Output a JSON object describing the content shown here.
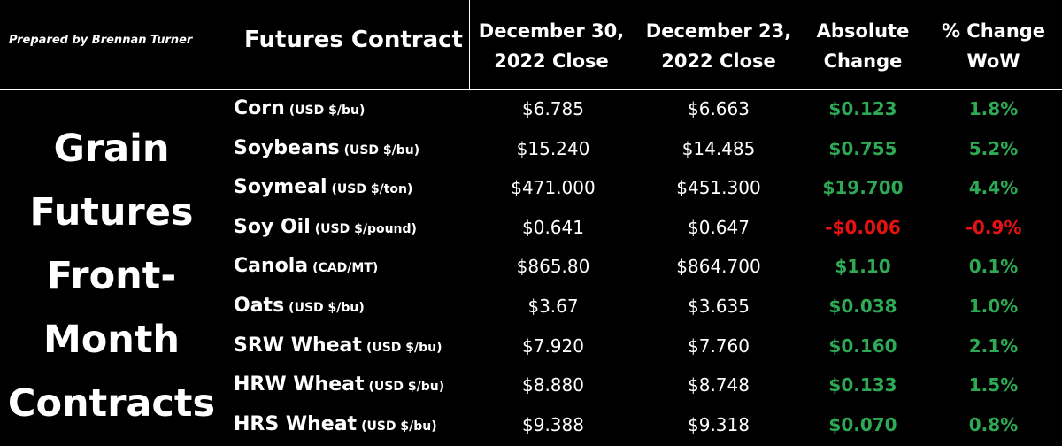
{
  "header": {
    "prepared_by": "Prepared by Brennan Turner",
    "contract_label": "Futures Contract",
    "col1": [
      "December 30,",
      "2022 Close"
    ],
    "col2": [
      "December 23,",
      "2022 Close"
    ],
    "col3": [
      "Absolute",
      "Change"
    ],
    "col4": [
      "% Change",
      "WoW"
    ]
  },
  "side_title": [
    "Grain",
    "Futures",
    "Front-",
    "Month",
    "Contracts"
  ],
  "colors": {
    "positive": "#2eaa55",
    "negative": "#e81212",
    "text": "#ffffff",
    "background": "#000000"
  },
  "rows": [
    {
      "name": "Corn",
      "unit": "(USD $/bu)",
      "dec30": "$6.785",
      "dec23": "$6.663",
      "abs": "$0.123",
      "pct": "1.8%",
      "dir": "pos"
    },
    {
      "name": "Soybeans",
      "unit": "(USD $/bu)",
      "dec30": "$15.240",
      "dec23": "$14.485",
      "abs": "$0.755",
      "pct": "5.2%",
      "dir": "pos"
    },
    {
      "name": "Soymeal",
      "unit": "(USD $/ton)",
      "dec30": "$471.000",
      "dec23": "$451.300",
      "abs": "$19.700",
      "pct": "4.4%",
      "dir": "pos"
    },
    {
      "name": "Soy Oil",
      "unit": "(USD $/pound)",
      "dec30": "$0.641",
      "dec23": "$0.647",
      "abs": "-$0.006",
      "pct": "-0.9%",
      "dir": "neg"
    },
    {
      "name": "Canola",
      "unit": "(CAD/MT)",
      "dec30": "$865.80",
      "dec23": "$864.700",
      "abs": "$1.10",
      "pct": "0.1%",
      "dir": "pos"
    },
    {
      "name": "Oats",
      "unit": "(USD $/bu)",
      "dec30": "$3.67",
      "dec23": "$3.635",
      "abs": "$0.038",
      "pct": "1.0%",
      "dir": "pos"
    },
    {
      "name": "SRW Wheat",
      "unit": "(USD $/bu)",
      "dec30": "$7.920",
      "dec23": "$7.760",
      "abs": "$0.160",
      "pct": "2.1%",
      "dir": "pos"
    },
    {
      "name": "HRW Wheat",
      "unit": "(USD $/bu)",
      "dec30": "$8.880",
      "dec23": "$8.748",
      "abs": "$0.133",
      "pct": "1.5%",
      "dir": "pos"
    },
    {
      "name": "HRS Wheat",
      "unit": "(USD $/bu)",
      "dec30": "$9.388",
      "dec23": "$9.318",
      "abs": "$0.070",
      "pct": "0.8%",
      "dir": "pos"
    }
  ]
}
